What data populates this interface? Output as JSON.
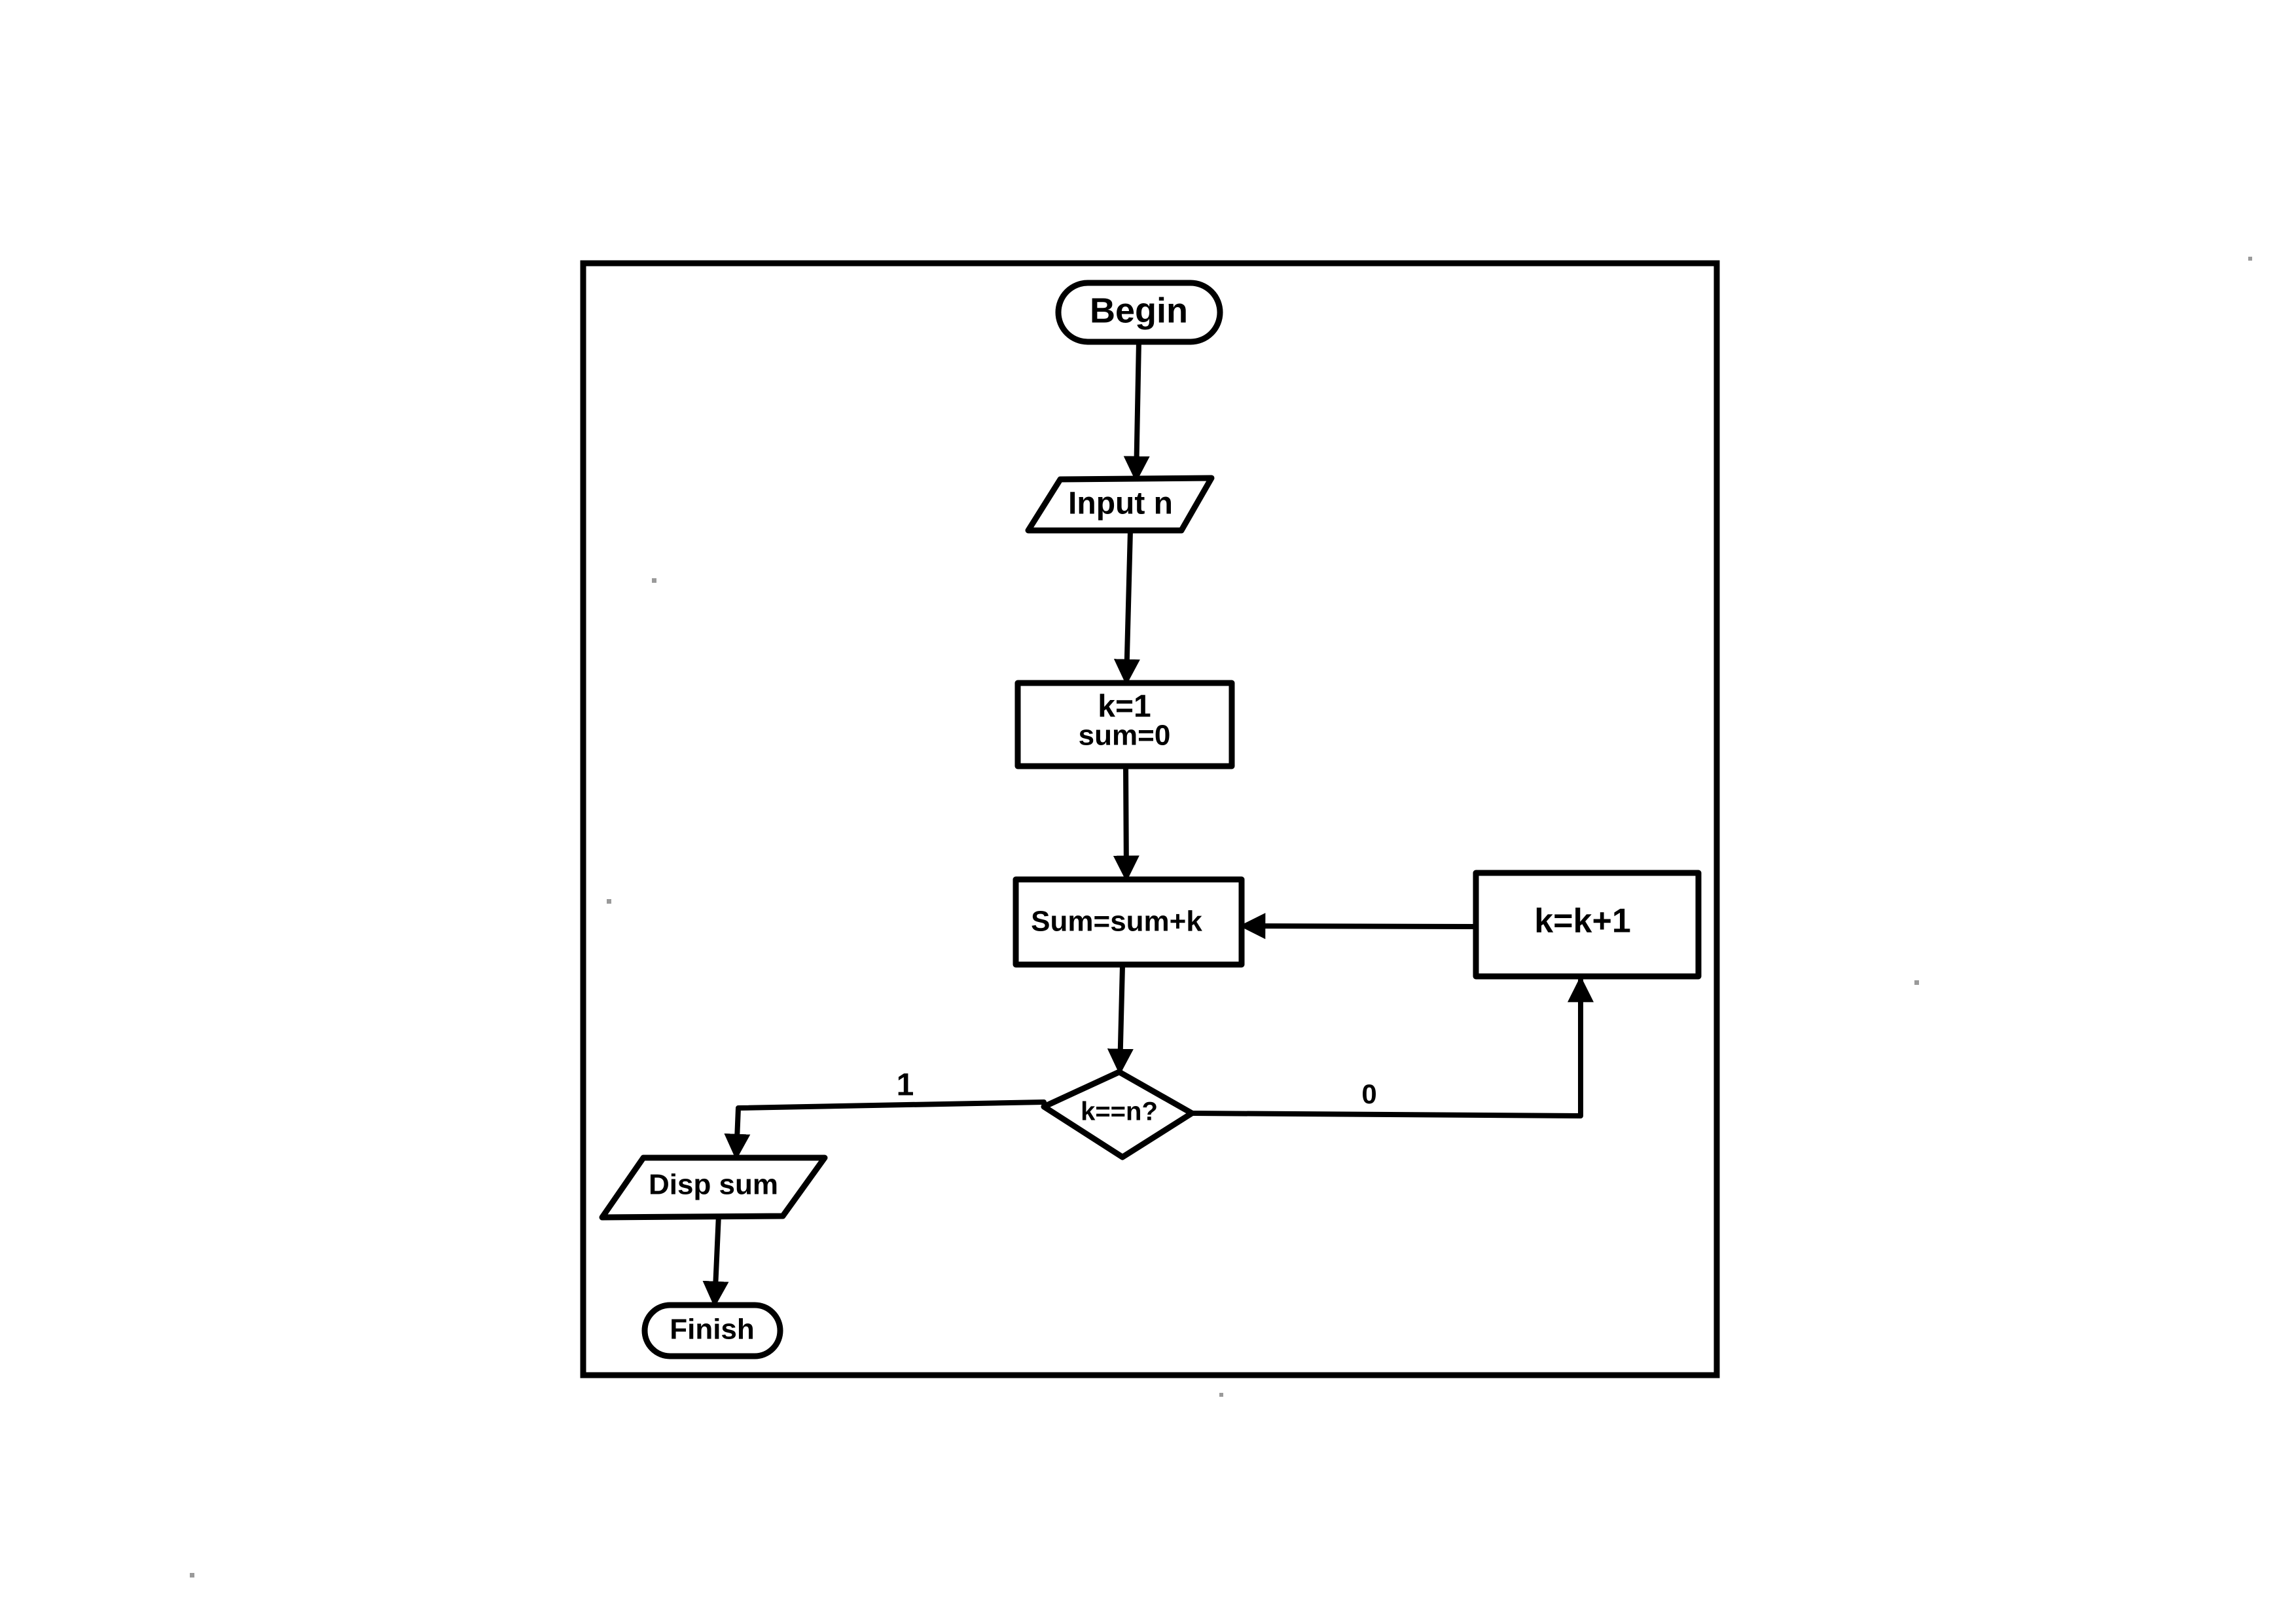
{
  "flowchart": {
    "nodes": {
      "begin": {
        "shape": "terminator",
        "label": "Begin"
      },
      "input": {
        "shape": "input-output",
        "label": "Input n"
      },
      "init": {
        "shape": "process",
        "lines": [
          "k=1",
          "sum=0"
        ]
      },
      "accumulate": {
        "shape": "process",
        "label": "Sum=sum+k"
      },
      "increment": {
        "shape": "process",
        "label": "k=k+1"
      },
      "decision": {
        "shape": "decision",
        "label": "k==n?"
      },
      "display": {
        "shape": "input-output",
        "label": "Disp sum"
      },
      "finish": {
        "shape": "terminator",
        "label": "Finish"
      }
    },
    "edges": {
      "true_label": "1",
      "false_label": "0"
    }
  },
  "colors": {
    "ink": "#000000",
    "paper": "#ffffff"
  }
}
